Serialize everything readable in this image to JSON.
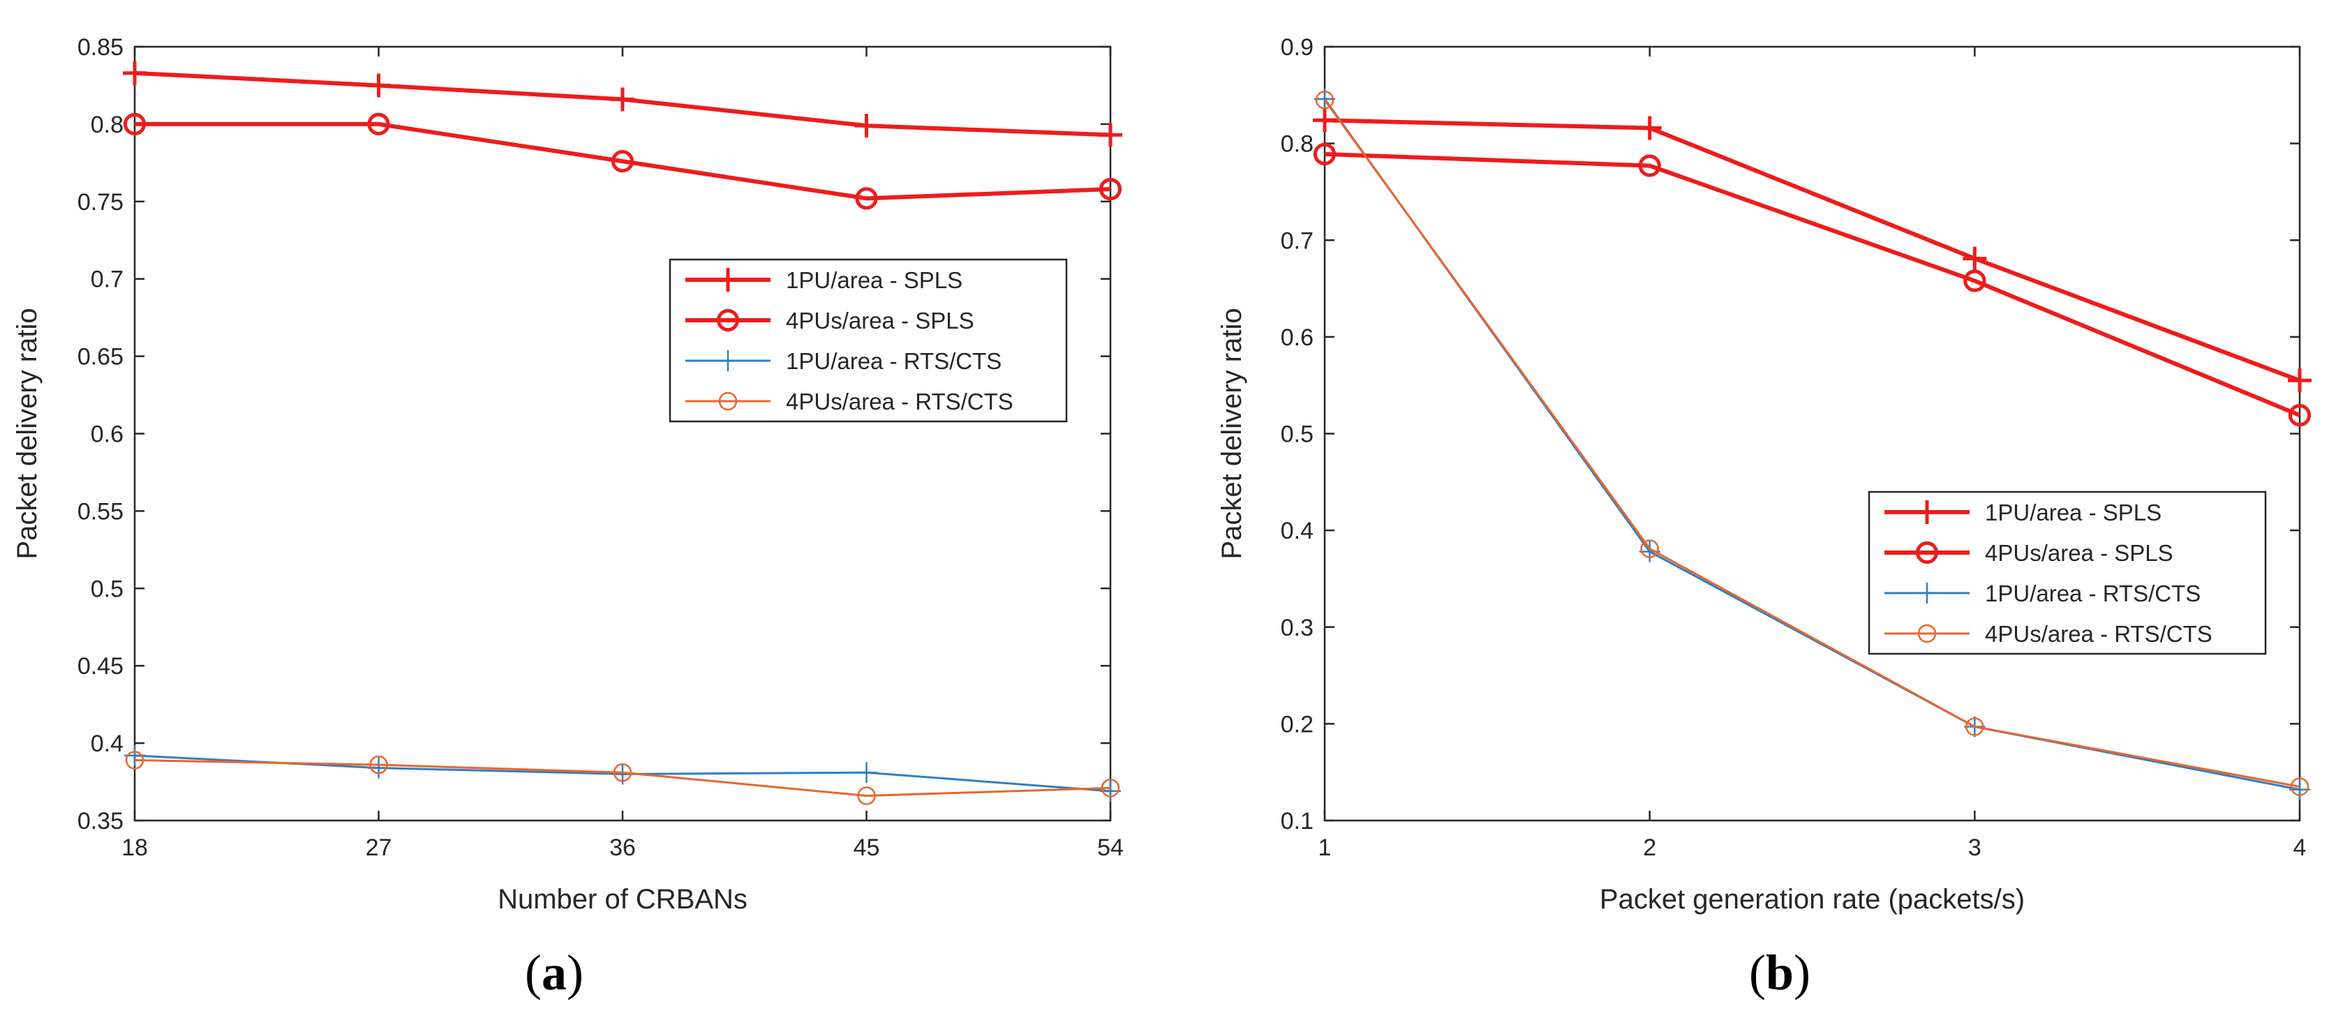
{
  "chart_data": [
    {
      "type": "line",
      "panel_label": "a",
      "caption_open": "(",
      "caption_close": ")",
      "xlabel": "Number of CRBANs",
      "ylabel": "Packet delivery ratio",
      "x": [
        18,
        27,
        36,
        45,
        54
      ],
      "xlim": [
        18,
        54
      ],
      "ylim": [
        0.35,
        0.85
      ],
      "xticks": [
        "18",
        "27",
        "36",
        "45",
        "54"
      ],
      "yticks": [
        "0.35",
        "0.4",
        "0.45",
        "0.5",
        "0.55",
        "0.6",
        "0.65",
        "0.7",
        "0.75",
        "0.8",
        "0.85"
      ],
      "legend_position": "center-right",
      "series": [
        {
          "name": "1PU/area - SPLS",
          "marker": "plus",
          "color": "#ee1c1c",
          "line_style": "thick",
          "values": [
            0.833,
            0.825,
            0.816,
            0.799,
            0.793
          ]
        },
        {
          "name": "4PUs/area - SPLS",
          "marker": "circle",
          "color": "#ee1c1c",
          "line_style": "thick",
          "values": [
            0.8,
            0.8,
            0.776,
            0.752,
            0.758
          ]
        },
        {
          "name": "1PU/area - RTS/CTS",
          "marker": "plus",
          "color": "#2f7fc1",
          "line_style": "thin",
          "values": [
            0.392,
            0.384,
            0.38,
            0.381,
            0.369
          ]
        },
        {
          "name": "4PUs/area - RTS/CTS",
          "marker": "circle",
          "color": "#e8662e",
          "line_style": "thin",
          "values": [
            0.389,
            0.386,
            0.381,
            0.366,
            0.371
          ]
        }
      ]
    },
    {
      "type": "line",
      "panel_label": "b",
      "caption_open": "(",
      "caption_close": ")",
      "xlabel": "Packet generation rate (packets/s)",
      "ylabel": "Packet delivery ratio",
      "x": [
        1,
        2,
        3,
        4
      ],
      "xlim": [
        1,
        4
      ],
      "ylim": [
        0.1,
        0.9
      ],
      "xticks": [
        "1",
        "2",
        "3",
        "4"
      ],
      "yticks": [
        "0.1",
        "0.2",
        "0.3",
        "0.4",
        "0.5",
        "0.6",
        "0.7",
        "0.8",
        "0.9"
      ],
      "legend_position": "bottom-right",
      "series": [
        {
          "name": "1PU/area - SPLS",
          "marker": "plus",
          "color": "#ee1c1c",
          "line_style": "thick",
          "values": [
            0.824,
            0.816,
            0.681,
            0.555
          ]
        },
        {
          "name": "4PUs/area - SPLS",
          "marker": "circle",
          "color": "#ee1c1c",
          "line_style": "thick",
          "values": [
            0.789,
            0.777,
            0.658,
            0.519
          ]
        },
        {
          "name": "1PU/area - RTS/CTS",
          "marker": "plus",
          "color": "#2f7fc1",
          "line_style": "thin",
          "values": [
            0.846,
            0.378,
            0.197,
            0.132
          ]
        },
        {
          "name": "4PUs/area - RTS/CTS",
          "marker": "circle",
          "color": "#e8662e",
          "line_style": "thin",
          "values": [
            0.845,
            0.381,
            0.197,
            0.135
          ]
        }
      ]
    }
  ]
}
